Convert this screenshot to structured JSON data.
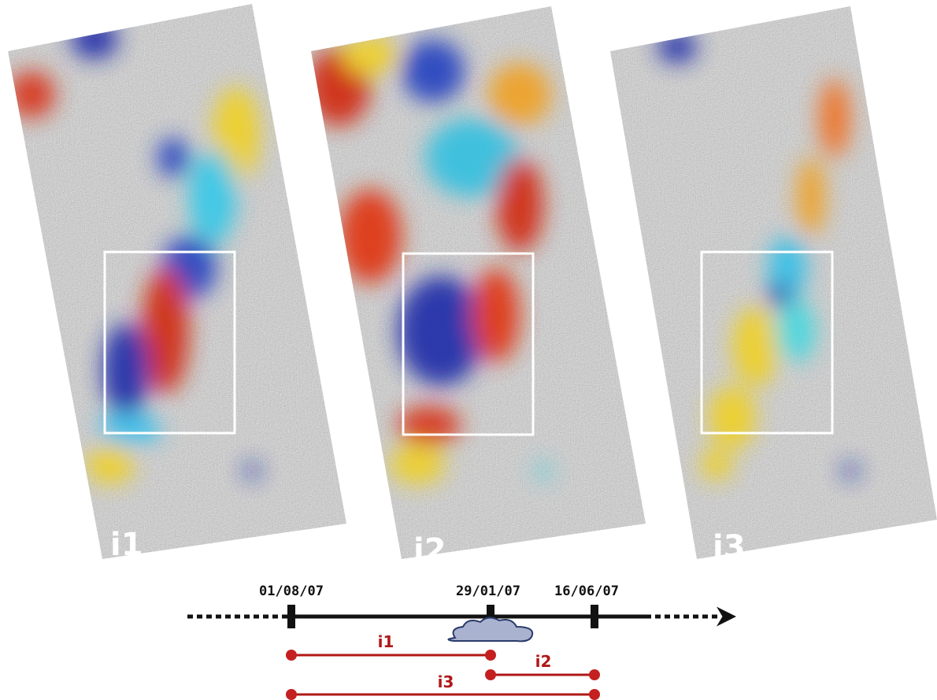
{
  "panels": [
    {
      "label": "i1"
    },
    {
      "label": "i2"
    },
    {
      "label": "i3"
    }
  ],
  "timeline": {
    "dates": [
      "01/08/07",
      "29/01/07",
      "16/06/07"
    ],
    "intervals": [
      {
        "label": "i1"
      },
      {
        "label": "i2"
      },
      {
        "label": "i3"
      }
    ]
  }
}
